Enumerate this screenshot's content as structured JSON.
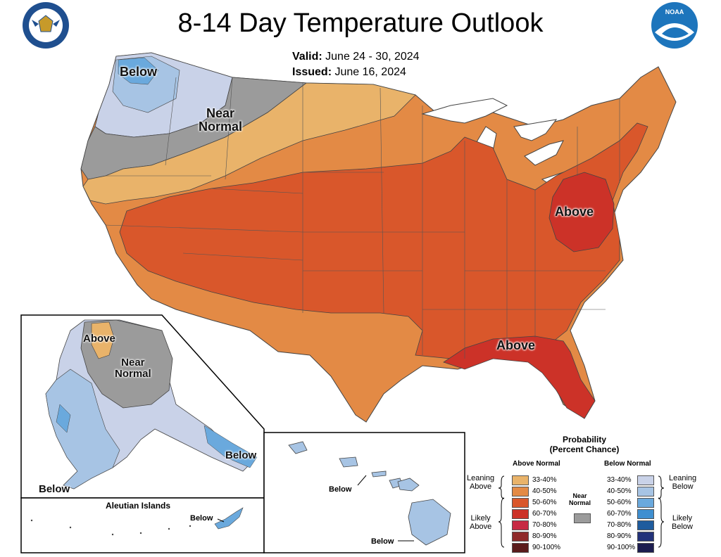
{
  "title": "8-14 Day Temperature Outlook",
  "valid_label": "Valid:",
  "valid_dates": "June 24 - 30, 2024",
  "issued_label": "Issued:",
  "issued_date": "June 16, 2024",
  "noaa_logo_text": "NOAA",
  "commerce_seal_text": "DEPARTMENT OF COMMERCE · UNITED STATES OF AMERICA",
  "colors": {
    "above_33_40": "#e9b36a",
    "above_40_50": "#e38a45",
    "above_50_60": "#d9572b",
    "above_60_70": "#cc3228",
    "near_normal": "#9b9b9b",
    "below_33_40": "#c9d2e8",
    "below_40_50": "#a7c4e4",
    "below_50_60": "#6aa9dd"
  },
  "map_labels": {
    "conus_below": "Below",
    "conus_near_normal_line1": "Near",
    "conus_near_normal_line2": "Normal",
    "conus_above_east": "Above",
    "conus_above_south": "Above",
    "alaska_above": "Above",
    "alaska_near_line1": "Near",
    "alaska_near_line2": "Normal",
    "alaska_below_se": "Below",
    "alaska_below_sw": "Below",
    "aleutian_title": "Aleutian Islands",
    "aleutian_below": "Below",
    "hawaii_below_1": "Below",
    "hawaii_below_2": "Below"
  },
  "legend": {
    "title_line1": "Probability",
    "title_line2": "(Percent Chance)",
    "above_header": "Above Normal",
    "below_header": "Below Normal",
    "near_label_line1": "Near",
    "near_label_line2": "Normal",
    "leaning_above_1": "Leaning",
    "leaning_above_2": "Above",
    "likely_above_1": "Likely",
    "likely_above_2": "Above",
    "leaning_below_1": "Leaning",
    "leaning_below_2": "Below",
    "likely_below_1": "Likely",
    "likely_below_2": "Below",
    "above_rows": [
      {
        "label": "33-40%",
        "color": "#e9b36a"
      },
      {
        "label": "40-50%",
        "color": "#e38a45"
      },
      {
        "label": "50-60%",
        "color": "#d9572b"
      },
      {
        "label": "60-70%",
        "color": "#cc3228"
      },
      {
        "label": "70-80%",
        "color": "#c72a44"
      },
      {
        "label": "80-90%",
        "color": "#8f2a2a"
      },
      {
        "label": "90-100%",
        "color": "#5a1c1c"
      }
    ],
    "below_rows": [
      {
        "label": "33-40%",
        "color": "#c9d2e8"
      },
      {
        "label": "40-50%",
        "color": "#a7c4e4"
      },
      {
        "label": "50-60%",
        "color": "#6aa9dd"
      },
      {
        "label": "60-70%",
        "color": "#3f8fd0"
      },
      {
        "label": "70-80%",
        "color": "#1f5c9e"
      },
      {
        "label": "80-90%",
        "color": "#22327a"
      },
      {
        "label": "90-100%",
        "color": "#1c1c4f"
      }
    ],
    "near_color": "#9b9b9b"
  }
}
